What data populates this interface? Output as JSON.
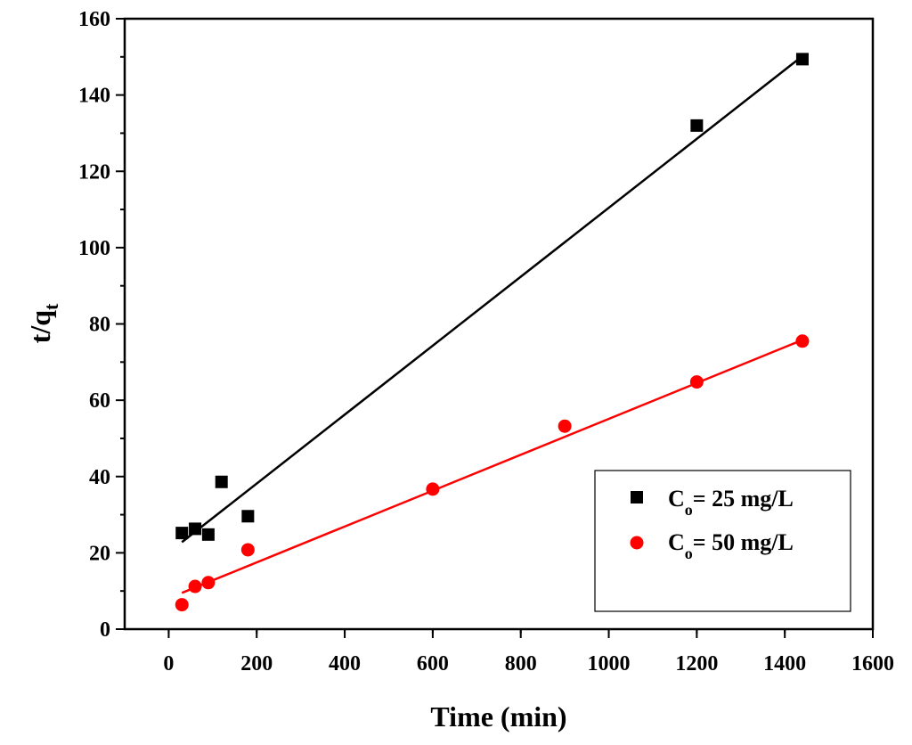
{
  "chart_data": {
    "type": "scatter",
    "xlabel": "Time (min)",
    "ylabel": {
      "main": "t/q",
      "sub": "t"
    },
    "xlim": [
      -100,
      1600
    ],
    "ylim": [
      0,
      160
    ],
    "xticks": [
      0,
      200,
      400,
      600,
      800,
      1000,
      1200,
      1400,
      1600
    ],
    "yticks": [
      0,
      20,
      40,
      60,
      80,
      100,
      120,
      140,
      160
    ],
    "grid": false,
    "legend_position": "bottom-right",
    "series": [
      {
        "name": "Cₒ= 25 mg/L",
        "label_main": "C",
        "label_sub": "o",
        "label_rest": "= 25 mg/L",
        "marker": "square",
        "color": "#000000",
        "points": [
          [
            30,
            25.2
          ],
          [
            60,
            26.3
          ],
          [
            90,
            24.8
          ],
          [
            120,
            38.6
          ],
          [
            180,
            29.6
          ],
          [
            1200,
            132
          ],
          [
            1440,
            149.4
          ]
        ],
        "fit": [
          [
            30,
            22.8
          ],
          [
            1440,
            150.2
          ]
        ]
      },
      {
        "name": "Cₒ= 50 mg/L",
        "label_main": "C",
        "label_sub": "o",
        "label_rest": "= 50 mg/L",
        "marker": "circle",
        "color": "#ff0000",
        "points": [
          [
            30,
            6.4
          ],
          [
            60,
            11.2
          ],
          [
            90,
            12.2
          ],
          [
            180,
            20.8
          ],
          [
            600,
            36.7
          ],
          [
            900,
            53.2
          ],
          [
            1200,
            64.8
          ],
          [
            1440,
            75.5
          ]
        ],
        "fit": [
          [
            30,
            9.5
          ],
          [
            1440,
            75.8
          ]
        ]
      }
    ]
  }
}
